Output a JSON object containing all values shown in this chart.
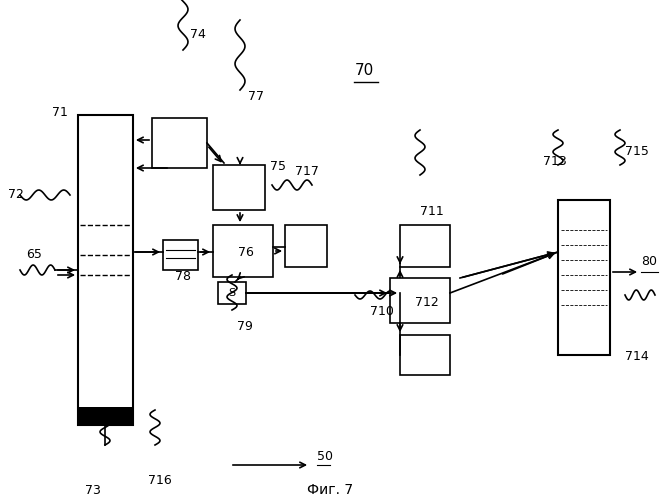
{
  "title": "Фиг. 7",
  "label_70": "70",
  "label_50": "50",
  "label_80": "80",
  "bg_color": "#ffffff",
  "line_color": "#000000",
  "box_color": "#ffffff",
  "fig_width": 6.61,
  "fig_height": 5.0,
  "dpi": 100
}
